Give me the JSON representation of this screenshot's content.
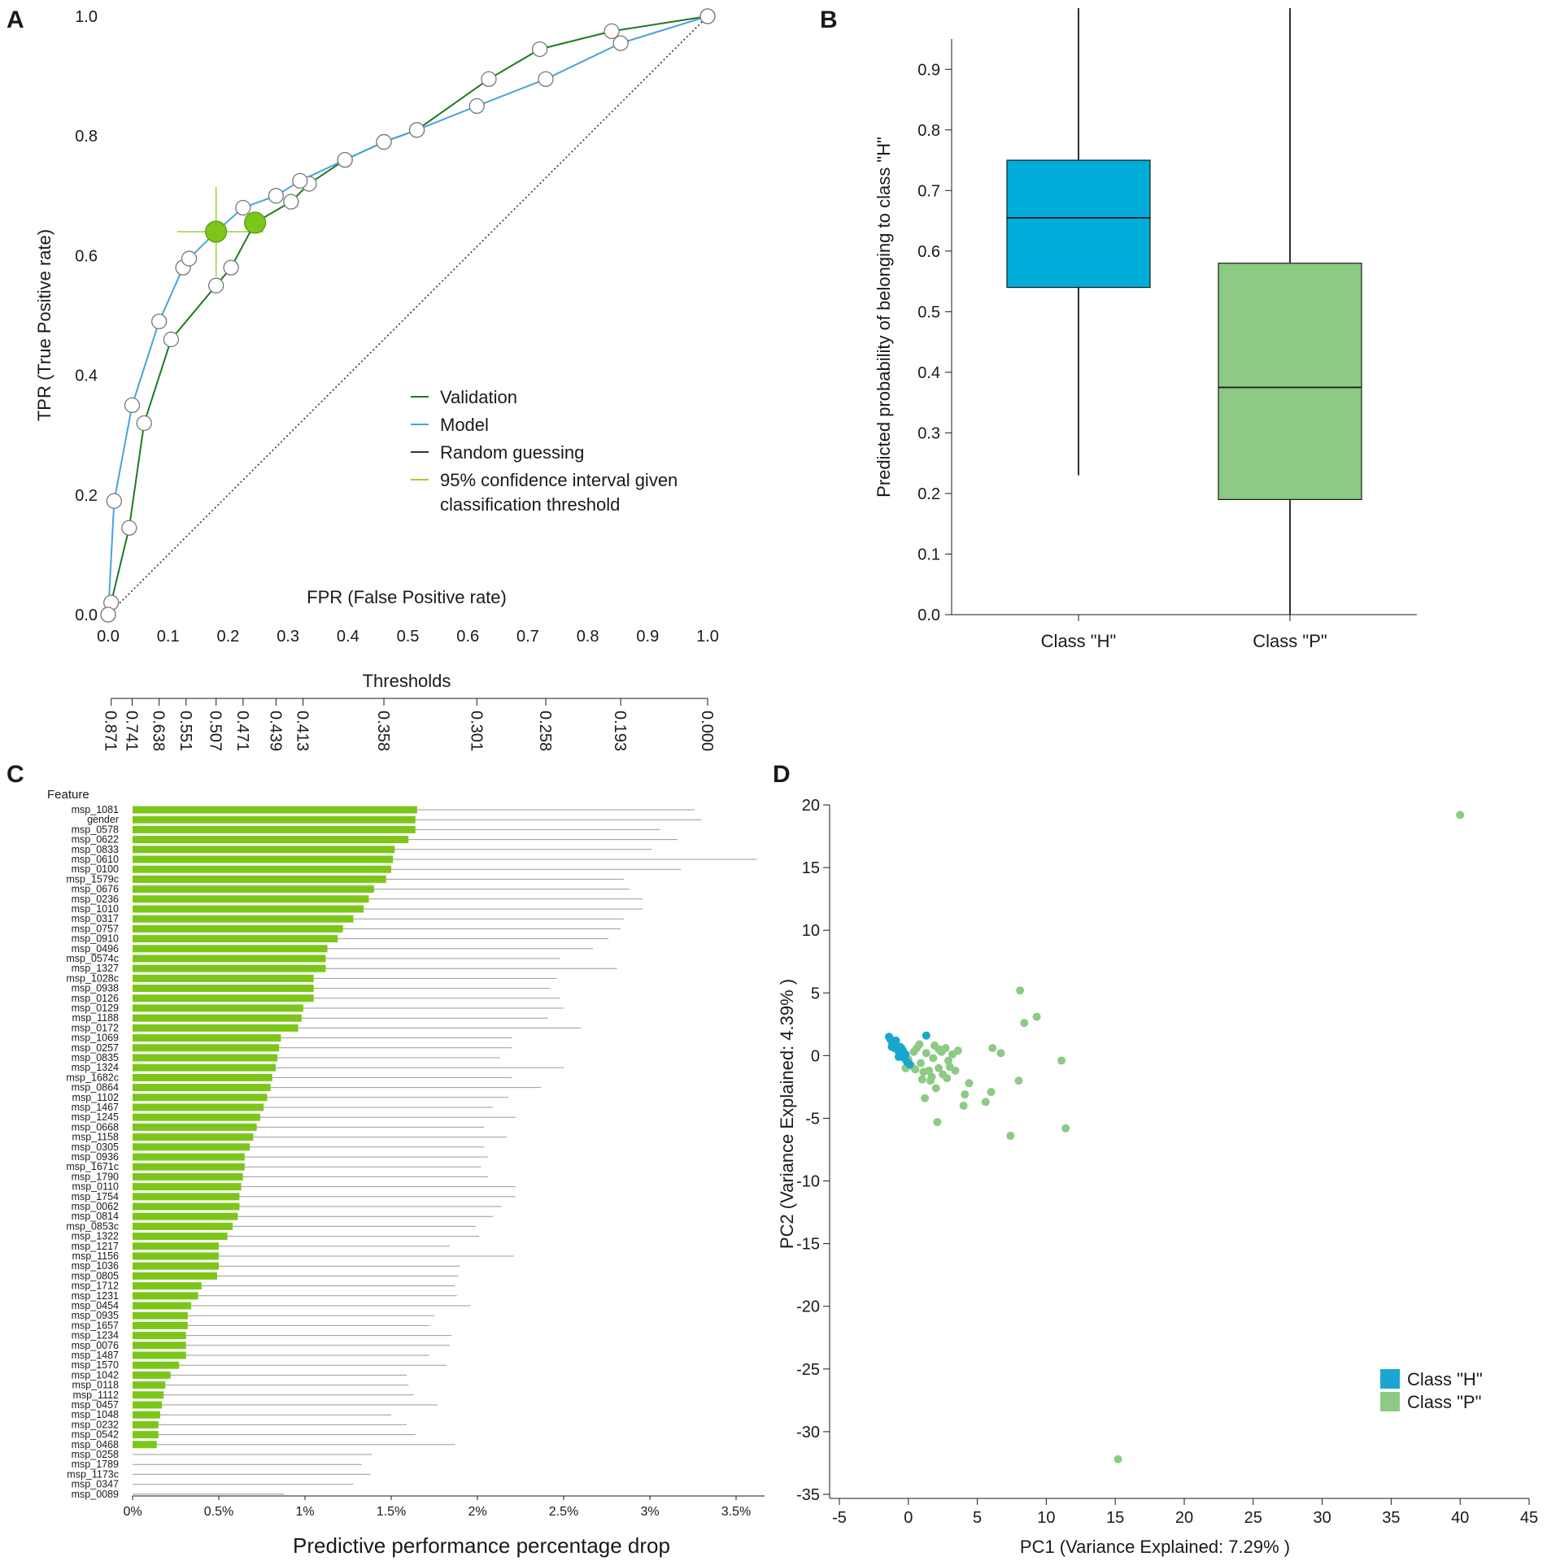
{
  "panel_labels": [
    "A",
    "B",
    "C",
    "D"
  ],
  "colors": {
    "validation": "#1e7a1e",
    "model": "#4aa3d9",
    "random": "#333333",
    "ci": "#9ccf3a",
    "highlight": "#7cc61a",
    "box_h": "#00acd8",
    "box_p": "#8cca85",
    "bar_green": "#7cc61a",
    "whisker_gray": "#999999",
    "scatter_h": "#1aa6d1",
    "scatter_p": "#8cca85"
  },
  "chart_data": [
    {
      "id": "A",
      "type": "line",
      "xlabel": "FPR (False Positive rate)",
      "ylabel": "TPR (True Positive rate)",
      "xlim": [
        0,
        1
      ],
      "ylim": [
        0,
        1
      ],
      "x_ticks": [
        "0.0",
        "0.1",
        "0.2",
        "0.3",
        "0.4",
        "0.5",
        "0.6",
        "0.7",
        "0.8",
        "0.9",
        "1.0"
      ],
      "y_ticks": [
        "0.0",
        "0.2",
        "0.4",
        "0.6",
        "0.8",
        "1.0"
      ],
      "series": [
        {
          "name": "Validation",
          "x": [
            0.0,
            0.005,
            0.035,
            0.06,
            0.105,
            0.18,
            0.205,
            0.245,
            0.305,
            0.335,
            0.395,
            0.46,
            0.515,
            0.635,
            0.72,
            0.84,
            1.0
          ],
          "y": [
            0.0,
            0.02,
            0.145,
            0.32,
            0.46,
            0.55,
            0.58,
            0.655,
            0.69,
            0.72,
            0.76,
            0.79,
            0.81,
            0.895,
            0.945,
            0.975,
            1.0
          ]
        },
        {
          "name": "Model",
          "x": [
            0.0,
            0.01,
            0.04,
            0.085,
            0.125,
            0.135,
            0.18,
            0.225,
            0.28,
            0.32,
            0.395,
            0.46,
            0.515,
            0.615,
            0.73,
            0.855,
            1.0
          ],
          "y": [
            0.0,
            0.19,
            0.35,
            0.49,
            0.58,
            0.595,
            0.64,
            0.68,
            0.7,
            0.725,
            0.76,
            0.79,
            0.81,
            0.85,
            0.895,
            0.955,
            1.0
          ]
        },
        {
          "name": "Random guessing",
          "x": [
            0,
            1
          ],
          "y": [
            0,
            1
          ]
        }
      ],
      "highlight_points": [
        {
          "x": 0.18,
          "y": 0.64
        },
        {
          "x": 0.245,
          "y": 0.655
        }
      ],
      "ci": {
        "x": 0.18,
        "y": 0.64,
        "x_low": 0.115,
        "x_high": 0.26,
        "y_low": 0.565,
        "y_high": 0.715
      },
      "legend": [
        "Validation",
        "Model",
        "Random guessing",
        "95% confidence interval given",
        "classification threshold"
      ],
      "legend_position": "lower-right",
      "thresholds_title": "Thresholds",
      "thresholds": [
        {
          "fpr": 0.005,
          "label": "0.871"
        },
        {
          "fpr": 0.04,
          "label": "0.741"
        },
        {
          "fpr": 0.085,
          "label": "0.638"
        },
        {
          "fpr": 0.13,
          "label": "0.551"
        },
        {
          "fpr": 0.18,
          "label": "0.507"
        },
        {
          "fpr": 0.225,
          "label": "0.471"
        },
        {
          "fpr": 0.28,
          "label": "0.439"
        },
        {
          "fpr": 0.325,
          "label": "0.413"
        },
        {
          "fpr": 0.46,
          "label": "0.358"
        },
        {
          "fpr": 0.615,
          "label": "0.301"
        },
        {
          "fpr": 0.73,
          "label": "0.258"
        },
        {
          "fpr": 0.855,
          "label": "0.193"
        },
        {
          "fpr": 1.0,
          "label": "0.000"
        }
      ]
    },
    {
      "id": "B",
      "type": "box",
      "ylabel": "Predicted probability of belonging to class \"H\"",
      "ylim": [
        0,
        0.95
      ],
      "y_ticks": [
        "0.0",
        "0.1",
        "0.2",
        "0.3",
        "0.4",
        "0.5",
        "0.6",
        "0.7",
        "0.8",
        "0.9"
      ],
      "boxes": [
        {
          "name": "Class \"H\"",
          "whislo": 0.23,
          "q1": 0.54,
          "med": 0.655,
          "q3": 0.75,
          "whishi": 1.0
        },
        {
          "name": "Class \"P\"",
          "whislo": 0.0,
          "q1": 0.19,
          "med": 0.375,
          "q3": 0.58,
          "whishi": 1.0
        }
      ]
    },
    {
      "id": "C",
      "type": "bar",
      "orientation": "horizontal",
      "header": "Feature",
      "xlabel": "Predictive performance percentage drop",
      "xlim": [
        0,
        3.6
      ],
      "x_ticks": [
        "0%",
        "0.5%",
        "1%",
        "1.5%",
        "2%",
        "2.5%",
        "3%",
        "3.5%"
      ],
      "categories": [
        "msp_1081",
        "gender",
        "msp_0578",
        "msp_0622",
        "msp_0833",
        "msp_0610",
        "msp_0100",
        "msp_1579c",
        "msp_0676",
        "msp_0236",
        "msp_1010",
        "msp_0317",
        "msp_0757",
        "msp_0910",
        "msp_0496",
        "msp_0574c",
        "msp_1327",
        "msp_1028c",
        "msp_0938",
        "msp_0126",
        "msp_0129",
        "msp_1188",
        "msp_0172",
        "msp_1069",
        "msp_0257",
        "msp_0835",
        "msp_1324",
        "msp_1682c",
        "msp_0864",
        "msp_1102",
        "msp_1467",
        "msp_1245",
        "msp_0668",
        "msp_1158",
        "msp_0305",
        "msp_0936",
        "msp_1671c",
        "msp_1790",
        "msp_0110",
        "msp_1754",
        "msp_0062",
        "msp_0814",
        "msp_0853c",
        "msp_1322",
        "msp_1217",
        "msp_1156",
        "msp_1036",
        "msp_0805",
        "msp_1712",
        "msp_1231",
        "msp_0454",
        "msp_0935",
        "msp_1657",
        "msp_1234",
        "msp_0076",
        "msp_1487",
        "msp_1570",
        "msp_1042",
        "msp_0118",
        "msp_1112",
        "msp_0457",
        "msp_1048",
        "msp_0232",
        "msp_0542",
        "msp_0468",
        "msp_0258",
        "msp_1789",
        "msp_1173c",
        "msp_0347",
        "msp_0089"
      ],
      "values": [
        1.65,
        1.64,
        1.64,
        1.6,
        1.52,
        1.51,
        1.5,
        1.47,
        1.4,
        1.37,
        1.34,
        1.28,
        1.22,
        1.19,
        1.13,
        1.12,
        1.12,
        1.05,
        1.05,
        1.05,
        0.99,
        0.98,
        0.96,
        0.86,
        0.85,
        0.84,
        0.83,
        0.81,
        0.8,
        0.78,
        0.76,
        0.74,
        0.72,
        0.7,
        0.68,
        0.65,
        0.65,
        0.64,
        0.63,
        0.62,
        0.62,
        0.61,
        0.58,
        0.55,
        0.5,
        0.5,
        0.5,
        0.49,
        0.4,
        0.38,
        0.34,
        0.32,
        0.32,
        0.31,
        0.31,
        0.31,
        0.27,
        0.22,
        0.19,
        0.18,
        0.17,
        0.16,
        0.15,
        0.15,
        0.14,
        0.0,
        0.0,
        0.0,
        0.0,
        0.0
      ],
      "ci_high": [
        3.26,
        3.3,
        3.06,
        3.16,
        3.01,
        3.62,
        3.18,
        2.85,
        2.88,
        2.96,
        2.96,
        2.85,
        2.83,
        2.76,
        2.67,
        2.48,
        2.81,
        2.46,
        2.42,
        2.48,
        2.5,
        2.41,
        2.6,
        2.2,
        2.2,
        2.13,
        2.5,
        2.2,
        2.37,
        2.18,
        2.09,
        2.22,
        2.04,
        2.17,
        2.04,
        2.06,
        2.02,
        2.06,
        2.22,
        2.22,
        2.14,
        2.09,
        1.99,
        2.01,
        1.84,
        2.21,
        1.9,
        1.89,
        1.87,
        1.88,
        1.96,
        1.75,
        1.72,
        1.85,
        1.84,
        1.72,
        1.82,
        1.59,
        1.6,
        1.63,
        1.77,
        1.5,
        1.59,
        1.64,
        1.87,
        1.39,
        1.33,
        1.38,
        1.28,
        0.88
      ]
    },
    {
      "id": "D",
      "type": "scatter",
      "xlabel": "PC1 (Variance Explained: 7.29% )",
      "ylabel": "PC2 (Variance Explained: 4.39% )",
      "xlim": [
        -5,
        45
      ],
      "ylim": [
        -35,
        20
      ],
      "x_ticks": [
        "-5",
        "0",
        "5",
        "10",
        "15",
        "20",
        "25",
        "30",
        "35",
        "40",
        "45"
      ],
      "y_ticks": [
        "-35",
        "-30",
        "-25",
        "-20",
        "-15",
        "-10",
        "-5",
        "0",
        "5",
        "10",
        "15",
        "20"
      ],
      "legend": [
        "Class \"H\"",
        "Class \"P\""
      ],
      "legend_position": "lower-right",
      "series": [
        {
          "name": "Class \"P\"",
          "points": [
            [
              40.0,
              19.2
            ],
            [
              15.2,
              -32.2
            ],
            [
              8.1,
              5.2
            ],
            [
              9.3,
              3.1
            ],
            [
              8.4,
              2.6
            ],
            [
              11.1,
              -0.4
            ],
            [
              11.4,
              -5.8
            ],
            [
              7.4,
              -6.4
            ],
            [
              6.1,
              0.6
            ],
            [
              6.7,
              0.2
            ],
            [
              8.0,
              -2.0
            ],
            [
              6.0,
              -2.9
            ],
            [
              5.6,
              -3.7
            ],
            [
              4.4,
              -2.2
            ],
            [
              4.1,
              -3.1
            ],
            [
              4.0,
              -4.0
            ],
            [
              2.1,
              -5.3
            ],
            [
              1.2,
              -3.4
            ],
            [
              2.0,
              -2.6
            ],
            [
              1.6,
              -2.0
            ],
            [
              1.0,
              -1.9
            ],
            [
              1.5,
              -1.2
            ],
            [
              2.2,
              -1.0
            ],
            [
              2.9,
              -0.4
            ],
            [
              3.2,
              0.1
            ],
            [
              2.7,
              0.6
            ],
            [
              1.9,
              0.8
            ],
            [
              3.6,
              0.4
            ],
            [
              3.0,
              -0.9
            ],
            [
              2.5,
              -1.5
            ],
            [
              0.5,
              -1.1
            ],
            [
              0.9,
              -0.6
            ],
            [
              1.3,
              0.2
            ],
            [
              0.6,
              0.6
            ],
            [
              1.8,
              -0.2
            ],
            [
              2.4,
              0.3
            ],
            [
              1.1,
              -1.3
            ],
            [
              0.2,
              -0.8
            ],
            [
              -0.2,
              -1.0
            ],
            [
              1.7,
              -1.7
            ],
            [
              2.8,
              -1.8
            ],
            [
              3.4,
              -1.2
            ],
            [
              0.4,
              0.3
            ],
            [
              0.0,
              -0.3
            ],
            [
              0.8,
              0.9
            ],
            [
              2.2,
              0.5
            ]
          ]
        },
        {
          "name": "Class \"H\"",
          "points": [
            [
              -1.4,
              1.5
            ],
            [
              -1.3,
              1.3
            ],
            [
              -1.2,
              1.1
            ],
            [
              -1.1,
              1.0
            ],
            [
              -1.0,
              0.9
            ],
            [
              -0.9,
              0.8
            ],
            [
              -1.2,
              0.7
            ],
            [
              -1.0,
              0.6
            ],
            [
              -0.8,
              0.5
            ],
            [
              -0.7,
              0.3
            ],
            [
              -0.6,
              0.2
            ],
            [
              -0.5,
              0.0
            ],
            [
              -0.3,
              -0.2
            ],
            [
              -0.1,
              -0.5
            ],
            [
              0.1,
              -0.7
            ],
            [
              -0.4,
              0.4
            ],
            [
              -0.6,
              0.7
            ],
            [
              -0.9,
              1.2
            ],
            [
              -0.2,
              0.1
            ],
            [
              1.3,
              1.6
            ],
            [
              -0.7,
              -0.1
            ],
            [
              -0.5,
              0.6
            ]
          ]
        }
      ]
    }
  ]
}
